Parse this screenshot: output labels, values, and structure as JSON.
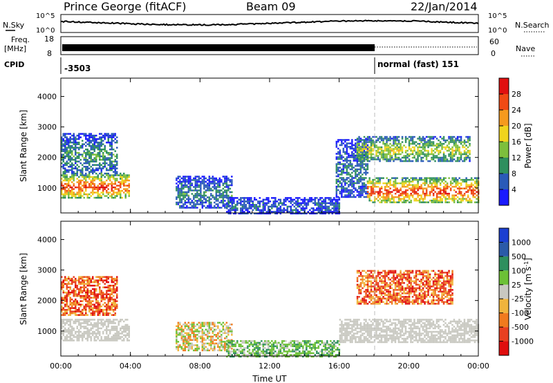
{
  "header": {
    "station": "Prince George (fitACF)",
    "beam": "Beam 09",
    "date": "22/Jan/2014"
  },
  "strip_labels": {
    "nsky": "N.Sky",
    "nsky_top": "10^5",
    "nsky_bottom": "10^0",
    "nsearch": "N.Search",
    "nsearch_top": "10^5",
    "nsearch_bottom": "10^0",
    "freq": "Freq.",
    "freq_unit": "[MHz]",
    "freq_top": "18",
    "freq_bottom": "8",
    "nave": "Nave",
    "nave_top": "60",
    "nave_bottom": "0",
    "cpid": "CPID",
    "cpid_value_1": "-3503",
    "cpid_value_2": "normal (fast) 151"
  },
  "colors": {
    "power_scale": [
      "#1a1aff",
      "#2a5ab8",
      "#2f8f5e",
      "#7dbf3c",
      "#f0d41e",
      "#f59a1e",
      "#f04a14",
      "#e01010"
    ],
    "velocity_scale": [
      "#1b3fd1",
      "#2b5aa8",
      "#2f8f5e",
      "#6cc035",
      "#c8c8c0",
      "#f0b43c",
      "#f07a1e",
      "#e84020",
      "#e00e0e"
    ]
  },
  "chart_data": [
    {
      "type": "heatmap",
      "panel": "power",
      "xlabel": "",
      "ylabel": "Slant Range [km]",
      "xlim": [
        0,
        24
      ],
      "ylim": [
        180,
        4600
      ],
      "x_ticks": [
        "00:00",
        "04:00",
        "08:00",
        "12:00",
        "16:00",
        "20:00",
        "00:00"
      ],
      "y_ticks": [
        1000,
        2000,
        3000,
        4000
      ],
      "colorbar_label": "Power [dB]",
      "colorbar_ticks": [
        4,
        8,
        12,
        16,
        20,
        24,
        28
      ],
      "colorbar_range": [
        0,
        32
      ],
      "regions": [
        {
          "t0": 0.0,
          "t1": 3.9,
          "r0": 700,
          "r1": 1500,
          "level": 24
        },
        {
          "t0": 0.0,
          "t1": 3.2,
          "r0": 1500,
          "r1": 2800,
          "level": 9
        },
        {
          "t0": 6.6,
          "t1": 9.8,
          "r0": 350,
          "r1": 1400,
          "level": 8
        },
        {
          "t0": 9.5,
          "t1": 16.0,
          "r0": 180,
          "r1": 700,
          "level": 6
        },
        {
          "t0": 15.8,
          "t1": 17.6,
          "r0": 700,
          "r1": 2600,
          "level": 7
        },
        {
          "t0": 17.6,
          "t1": 24.0,
          "r0": 550,
          "r1": 1350,
          "level": 25
        },
        {
          "t0": 17.0,
          "t1": 23.5,
          "r0": 1900,
          "r1": 2700,
          "level": 15
        }
      ]
    },
    {
      "type": "heatmap",
      "panel": "velocity",
      "xlabel": "Time UT",
      "ylabel": "Slant Range [km]",
      "xlim": [
        0,
        24
      ],
      "ylim": [
        180,
        4600
      ],
      "x_ticks": [
        "00:00",
        "04:00",
        "08:00",
        "12:00",
        "16:00",
        "20:00",
        "00:00"
      ],
      "y_ticks": [
        1000,
        2000,
        3000,
        4000
      ],
      "colorbar_label": "Velocity [m s^-1]",
      "colorbar_ticks": [
        "1000",
        "500",
        "100",
        "25",
        "-25",
        "-100",
        "-500",
        "-1000"
      ],
      "regions": [
        {
          "t0": 0.0,
          "t1": 3.9,
          "r0": 700,
          "r1": 1400,
          "class": "ground"
        },
        {
          "t0": 0.0,
          "t1": 3.2,
          "r0": 1500,
          "r1": 2800,
          "class": "away"
        },
        {
          "t0": 6.6,
          "t1": 9.8,
          "r0": 350,
          "r1": 1300,
          "class": "mixed"
        },
        {
          "t0": 9.5,
          "t1": 16.0,
          "r0": 180,
          "r1": 700,
          "class": "toward"
        },
        {
          "t0": 16.0,
          "t1": 24.0,
          "r0": 650,
          "r1": 1400,
          "class": "ground"
        },
        {
          "t0": 17.0,
          "t1": 22.5,
          "r0": 1900,
          "r1": 3000,
          "class": "away"
        }
      ]
    }
  ]
}
